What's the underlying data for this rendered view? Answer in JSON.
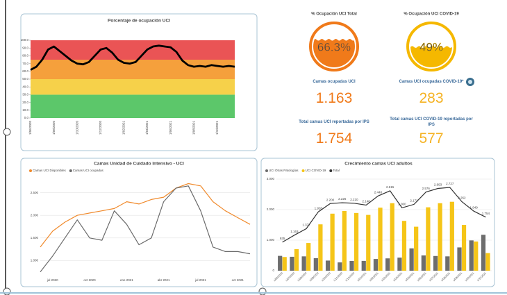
{
  "kpis": {
    "gauges": [
      {
        "title": "% Ocupación UCI Total",
        "value": 66.3,
        "value_label": "66.3%",
        "color": "#f07a1a"
      },
      {
        "title": "% Ocupación UCI COVID-19",
        "value": 49,
        "value_label": "49%",
        "color": "#f5b800"
      }
    ],
    "stats": [
      {
        "label": "Camas ocupadas UCI",
        "value": "1.163"
      },
      {
        "label": "Camas UCI ocupadas COVID-19*",
        "value": "283"
      },
      {
        "label": "Total camas UCI reportadas por IPS",
        "value": "1.754"
      },
      {
        "label": "Total camas UCI COVID-19 reportadas por IPS",
        "value": "577"
      }
    ]
  },
  "chart_data": [
    {
      "type": "line",
      "title": "Porcentaje de ocupación UCI",
      "color": "#000000",
      "categories": [
        "1/06/2020",
        null,
        null,
        null,
        "1/08/2020",
        null,
        null,
        null,
        "1/10/2020",
        null,
        null,
        null,
        "1/12/2020",
        null,
        null,
        null,
        "1/02/2021",
        null,
        null,
        null,
        "1/04/2021",
        null,
        null,
        null,
        "1/06/2021",
        null,
        null,
        null,
        "1/08/2021",
        null,
        null,
        null,
        "1/10/2021",
        null,
        null,
        null
      ],
      "values": [
        62,
        66,
        75,
        88,
        92,
        86,
        80,
        74,
        70,
        69,
        72,
        80,
        88,
        90,
        84,
        75,
        71,
        70,
        72,
        80,
        88,
        92,
        93,
        92,
        91,
        85,
        74,
        68,
        66,
        67,
        66,
        68,
        67,
        66,
        67,
        66
      ],
      "bands": [
        {
          "from": 0,
          "to": 30,
          "color": "#5cc76a"
        },
        {
          "from": 30,
          "to": 50,
          "color": "#f6d14a"
        },
        {
          "from": 50,
          "to": 75,
          "color": "#f5a03c"
        },
        {
          "from": 75,
          "to": 100,
          "color": "#ea5455"
        }
      ],
      "ylim": [
        0,
        100
      ],
      "yticks": [
        {
          "value": 0,
          "label": "0.0"
        },
        {
          "value": 10,
          "label": "10.0"
        },
        {
          "value": 20,
          "label": "20.0"
        },
        {
          "value": 30,
          "label": "30.0"
        },
        {
          "value": 40,
          "label": "40.0"
        },
        {
          "value": 50,
          "label": "50.0"
        },
        {
          "value": 60,
          "label": "60.0"
        },
        {
          "value": 70,
          "label": "70.0"
        },
        {
          "value": 80,
          "label": "80.0"
        },
        {
          "value": 90,
          "label": "90.0"
        },
        {
          "value": 100,
          "label": "100.0"
        }
      ]
    },
    {
      "type": "line",
      "title": "Camas Unidad de Cuidado Intensivo - UCI",
      "grid": true,
      "categories": [
        null,
        "jul 2020",
        null,
        null,
        "oct 2020",
        null,
        null,
        "ene 2021",
        null,
        null,
        "abr 2021",
        null,
        null,
        "jul 2021",
        null,
        null,
        "oct 2021",
        null
      ],
      "series": [
        {
          "name": "Camas UCI Disponibles",
          "color": "#f08a2c",
          "values": [
            1300,
            1650,
            1850,
            2000,
            2050,
            2100,
            2150,
            2300,
            2250,
            2350,
            2400,
            2600,
            2700,
            2650,
            2300,
            2100,
            1950,
            1800
          ]
        },
        {
          "name": "Camas UCI ocupadas",
          "color": "#6b6b6b",
          "values": [
            750,
            1100,
            1500,
            1900,
            1500,
            1450,
            2100,
            1800,
            1350,
            1500,
            2300,
            2600,
            2650,
            2100,
            1300,
            1200,
            1200,
            1150
          ]
        }
      ],
      "ylim": [
        700,
        2800
      ],
      "yticks": [
        {
          "value": 1000,
          "label": "1.000"
        },
        {
          "value": 1500,
          "label": "1.500"
        },
        {
          "value": 2000,
          "label": "2.000"
        },
        {
          "value": 2500,
          "label": "2.500"
        }
      ]
    },
    {
      "type": "bar",
      "title": "Crecimiento camas UCI adultos",
      "grid": true,
      "categories": [
        "1/06/2020",
        "1/07/2020",
        "1/08/2020",
        "1/09/2020",
        "1/10/2020",
        "1/11/2020",
        "1/12/2020",
        "1/01/2021",
        "1/02/2021",
        "1/03/2021",
        "1/04/2021",
        "1/05/2021",
        "1/06/2021",
        "1/07/2021",
        "1/08/2021",
        "1/09/2021",
        "1/10/2021",
        "1/11/2021"
      ],
      "series": [
        {
          "name": "UCI Otras Patologías",
          "color": "#6d6d6d",
          "values": [
            486,
            456,
            470,
            410,
            332,
            272,
            320,
            321,
            384,
            404,
            428,
            731,
            500,
            482,
            470,
            763,
            992,
            1177
          ]
        },
        {
          "name": "UCI COVID-19",
          "color": "#f5c518",
          "values": [
            449,
            707,
            907,
            1518,
            1868,
            1954,
            1890,
            1827,
            2064,
            2211,
            1632,
            1441,
            2076,
            2211,
            2257,
            1499,
            957,
            577
          ]
        },
        {
          "name": "Total",
          "type": "line",
          "color": "#333333",
          "values": [
            935,
            1163,
            1377,
            1928,
            2200,
            2226,
            2210,
            2148,
            2448,
            2615,
            2060,
            2172,
            2576,
            2693,
            2727,
            2262,
            1949,
            1754
          ],
          "value_labels": [
            "935",
            "1.163",
            "1.377",
            "1.928",
            "2.200",
            "2.226",
            "2.210",
            "2.148",
            "2.448",
            "2.615",
            "2.060",
            "2.172",
            "2.576",
            "2.693",
            "2.727",
            "2.262",
            "1.949",
            "1.754"
          ]
        }
      ],
      "ylim": [
        0,
        3000
      ],
      "yticks": [
        0,
        {
          "value": 1000,
          "label": "1.000"
        },
        {
          "value": 2000,
          "label": "2.000"
        },
        {
          "value": 3000,
          "label": "3.000"
        }
      ]
    }
  ]
}
